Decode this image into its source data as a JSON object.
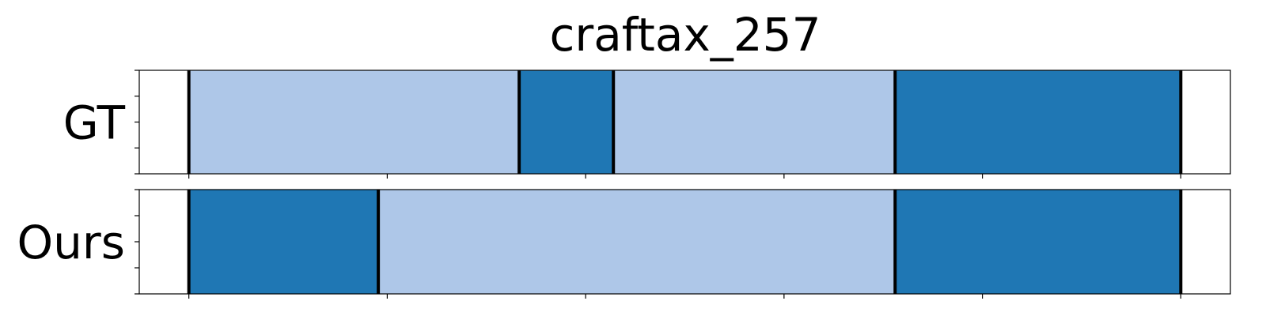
{
  "chart_data": {
    "type": "segmentation-timeline",
    "title": "craftax_257",
    "xlim": [
      -5,
      105
    ],
    "boundary_color": "#000000",
    "rows": [
      {
        "label": "GT",
        "segments": [
          {
            "start": 0,
            "end": 33.3,
            "class": "light",
            "color": "#aec7e8"
          },
          {
            "start": 33.3,
            "end": 42.8,
            "class": "dark",
            "color": "#1f77b4"
          },
          {
            "start": 42.8,
            "end": 71.2,
            "class": "light",
            "color": "#aec7e8"
          },
          {
            "start": 71.2,
            "end": 100,
            "class": "dark",
            "color": "#1f77b4"
          }
        ]
      },
      {
        "label": "Ours",
        "segments": [
          {
            "start": 0,
            "end": 19.1,
            "class": "dark",
            "color": "#1f77b4"
          },
          {
            "start": 19.1,
            "end": 71.2,
            "class": "light",
            "color": "#aec7e8"
          },
          {
            "start": 71.2,
            "end": 100,
            "class": "dark",
            "color": "#1f77b4"
          }
        ]
      }
    ],
    "xticks": [
      0,
      20,
      40,
      60,
      80,
      100
    ],
    "show_xtick_labels": false,
    "show_ytick_labels": false,
    "yticks_count": 5
  }
}
